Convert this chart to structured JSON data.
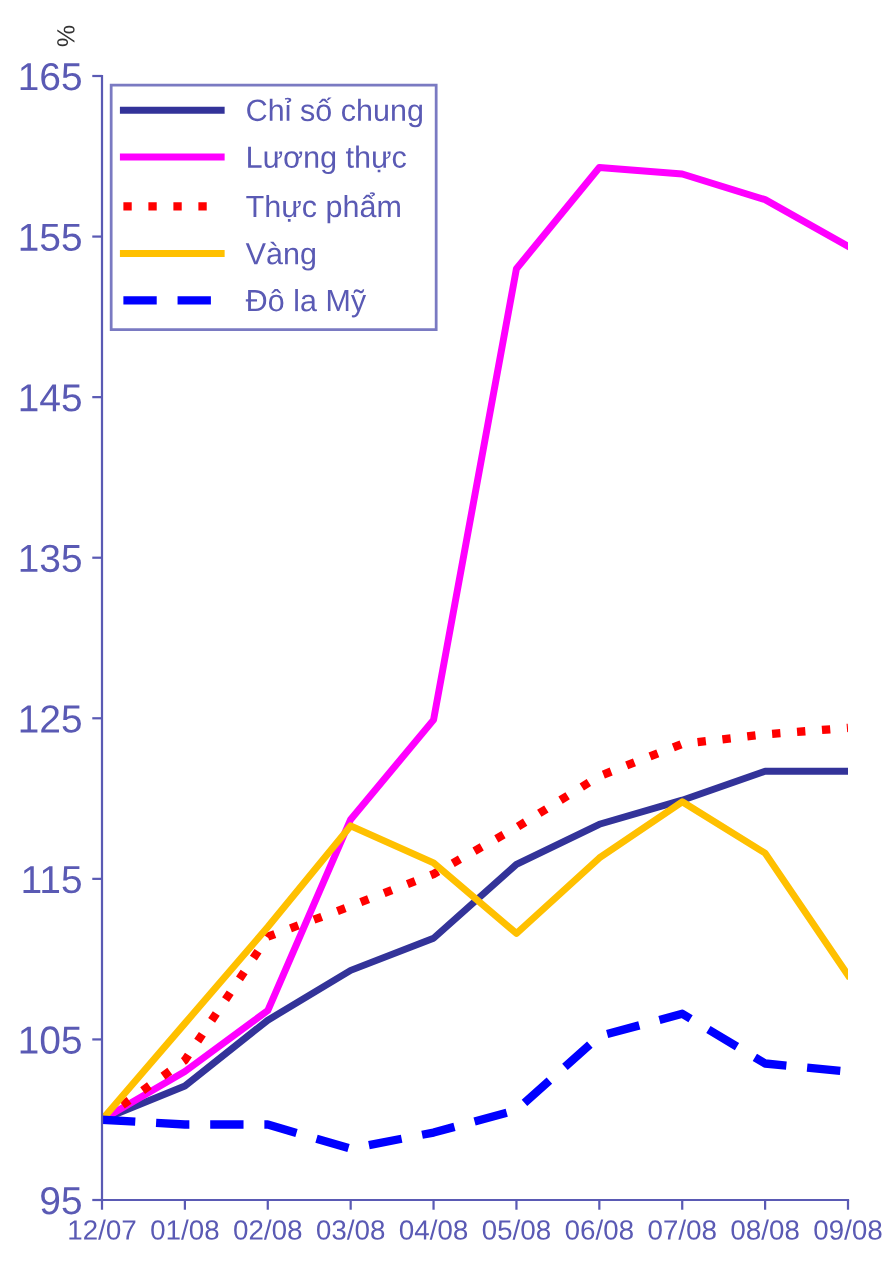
{
  "chart_data": {
    "type": "line",
    "ylabel": "%",
    "categories": [
      "12/07",
      "01/08",
      "02/08",
      "03/08",
      "04/08",
      "05/08",
      "06/08",
      "07/08",
      "08/08",
      "09/08"
    ],
    "ylim": [
      95,
      165
    ],
    "yticks": [
      95,
      105,
      115,
      125,
      135,
      145,
      155,
      165
    ],
    "grid": false,
    "legend": "top left",
    "marker": "none",
    "series": [
      {
        "name": "Chỉ số chung",
        "color": "#333399",
        "line_style": "solid",
        "values": [
          100,
          102.1,
          106.2,
          109.3,
          111.3,
          115.9,
          118.4,
          119.9,
          121.7,
          121.7
        ]
      },
      {
        "name": "Lương thực",
        "color": "#ff00ff",
        "line_style": "solid",
        "values": [
          100,
          103,
          106.8,
          118.7,
          124.9,
          153,
          159.3,
          158.9,
          157.3,
          154.4
        ]
      },
      {
        "name": "Thực phẩm",
        "color": "#ff0000",
        "line_style": "dotted",
        "values": [
          100,
          103.7,
          111.4,
          113.3,
          115.3,
          118.2,
          121.4,
          123.4,
          124,
          124.4
        ]
      },
      {
        "name": "Vàng",
        "color": "#ffc000",
        "line_style": "solid",
        "values": [
          100,
          106,
          112,
          118.3,
          116,
          111.6,
          116.3,
          119.8,
          116.6,
          109
        ]
      },
      {
        "name": "Đô la Mỹ",
        "color": "#0000ff",
        "line_style": "dashed",
        "values": [
          100,
          99.7,
          99.7,
          98.2,
          99.2,
          100.6,
          105.2,
          106.6,
          103.5,
          103
        ]
      }
    ]
  }
}
